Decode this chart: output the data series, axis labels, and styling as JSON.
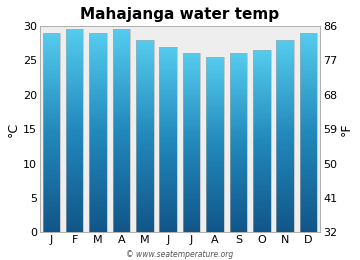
{
  "title": "Mahajanga water temp",
  "months": [
    "J",
    "F",
    "M",
    "A",
    "M",
    "J",
    "J",
    "A",
    "S",
    "O",
    "N",
    "D"
  ],
  "values_c": [
    29,
    29.5,
    29,
    29.5,
    28,
    27,
    26,
    25.5,
    26,
    26.5,
    28,
    29
  ],
  "ylim_c": [
    0,
    30
  ],
  "yticks_c": [
    0,
    5,
    10,
    15,
    20,
    25,
    30
  ],
  "yticks_f": [
    32,
    41,
    50,
    59,
    68,
    77,
    86
  ],
  "ylabel_left": "°C",
  "ylabel_right": "°F",
  "fig_bg_color": "#ffffff",
  "plot_bg_color": "#eeeeee",
  "bar_top_color": "#55ccee",
  "bar_mid_color": "#2288bb",
  "bar_bottom_color": "#115588",
  "bar_edge_color": "#aaaaaa",
  "title_fontsize": 11,
  "axis_fontsize": 8,
  "label_fontsize": 9,
  "watermark": "© www.seatemperature.org"
}
